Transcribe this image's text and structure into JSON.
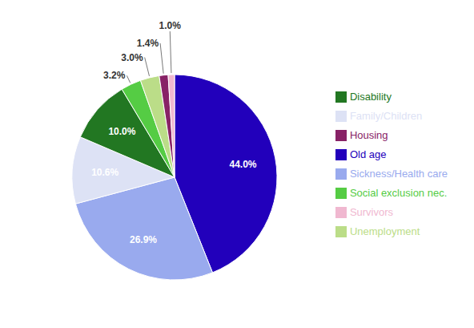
{
  "chart_data": {
    "type": "pie",
    "categories": [
      "Old age",
      "Sickness/Health care",
      "Family/Children",
      "Disability",
      "Social exclusion nec.",
      "Unemployment",
      "Housing",
      "Survivors"
    ],
    "values": [
      44.0,
      26.9,
      10.6,
      10.0,
      3.2,
      3.0,
      1.4,
      1.0
    ],
    "value_labels": [
      "44.0%",
      "26.9%",
      "10.6%",
      "10.0%",
      "3.2%",
      "3.0%",
      "1.4%",
      "1.0%"
    ],
    "colors": [
      "#2200bb",
      "#99aaee",
      "#dde2f5",
      "#227722",
      "#55cc44",
      "#bbdd88",
      "#882266",
      "#f0b8d0"
    ],
    "data_labels": true,
    "legend": "right"
  }
}
